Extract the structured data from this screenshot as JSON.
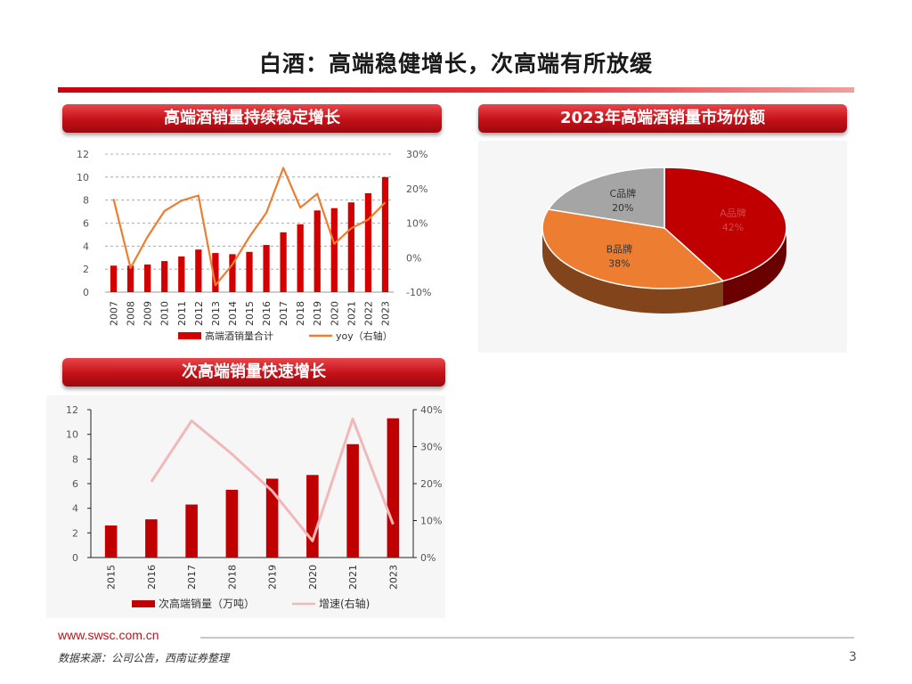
{
  "slide": {
    "title": "白酒：高端稳健增长，次高端有所放缓",
    "footer_link": "www.swsc.com.cn",
    "source": "数据来源：公司公告，西南证券整理",
    "page_number": "3"
  },
  "panels": {
    "p1_title": "高端酒销量持续稳定增长",
    "p2_title": "2023年高端酒销量市场份额",
    "p3_title": "次高端销量快速增长"
  },
  "chart_data": [
    {
      "type": "bar",
      "title": "",
      "categories": [
        "2007",
        "2008",
        "2009",
        "2010",
        "2011",
        "2012",
        "2013",
        "2014",
        "2015",
        "2016",
        "2017",
        "2018",
        "2019",
        "2020",
        "2021",
        "2022",
        "2023"
      ],
      "series": [
        {
          "name": "高端酒销量合计",
          "axis": "left",
          "color": "#d40000",
          "values": [
            2.3,
            2.3,
            2.4,
            2.7,
            3.1,
            3.7,
            3.4,
            3.3,
            3.5,
            4.1,
            5.2,
            5.9,
            7.1,
            7.3,
            7.8,
            8.6,
            10.0
          ]
        },
        {
          "name": "yoy（右轴）",
          "axis": "right",
          "color": "#ed7d31",
          "type": "line",
          "values": [
            0.17,
            -0.03,
            0.06,
            0.135,
            0.165,
            0.18,
            -0.08,
            -0.02,
            0.06,
            0.13,
            0.26,
            0.145,
            0.185,
            0.04,
            0.085,
            0.11,
            0.16
          ]
        }
      ],
      "ylim_left": [
        0,
        12
      ],
      "yticks_left": [
        "0",
        "2",
        "4",
        "6",
        "8",
        "10",
        "12"
      ],
      "ylim_right": [
        -0.1,
        0.3
      ],
      "yticks_right": [
        "-10%",
        "0%",
        "10%",
        "20%",
        "30%"
      ],
      "grid": true,
      "legend": "bottom"
    },
    {
      "type": "pie",
      "title": "",
      "slices": [
        {
          "label": "A品牌",
          "pct": "42%",
          "value": 42,
          "color": "#c00000"
        },
        {
          "label": "B品牌",
          "pct": "38%",
          "value": 38,
          "color": "#ed7d31"
        },
        {
          "label": "C品牌",
          "pct": "20%",
          "value": 20,
          "color": "#a5a5a5"
        }
      ],
      "style": "3d"
    },
    {
      "type": "bar",
      "title": "",
      "categories": [
        "2015",
        "2016",
        "2017",
        "2018",
        "2019",
        "2020",
        "2021",
        "2023"
      ],
      "series": [
        {
          "name": "次高端销量（万吨）",
          "axis": "left",
          "color": "#c00000",
          "values": [
            2.6,
            3.1,
            4.3,
            5.5,
            6.4,
            6.7,
            9.2,
            11.3
          ]
        },
        {
          "name": "增速(右轴)",
          "axis": "right",
          "color": "#f0b8b8",
          "type": "line",
          "values": [
            null,
            0.205,
            0.37,
            0.28,
            0.18,
            0.045,
            0.375,
            0.09
          ]
        }
      ],
      "ylim_left": [
        0,
        12
      ],
      "yticks_left": [
        "0",
        "2",
        "4",
        "6",
        "8",
        "10",
        "12"
      ],
      "ylim_right": [
        0,
        0.4
      ],
      "yticks_right": [
        "0%",
        "10%",
        "20%",
        "30%",
        "40%"
      ],
      "grid": false,
      "legend": "bottom"
    }
  ]
}
